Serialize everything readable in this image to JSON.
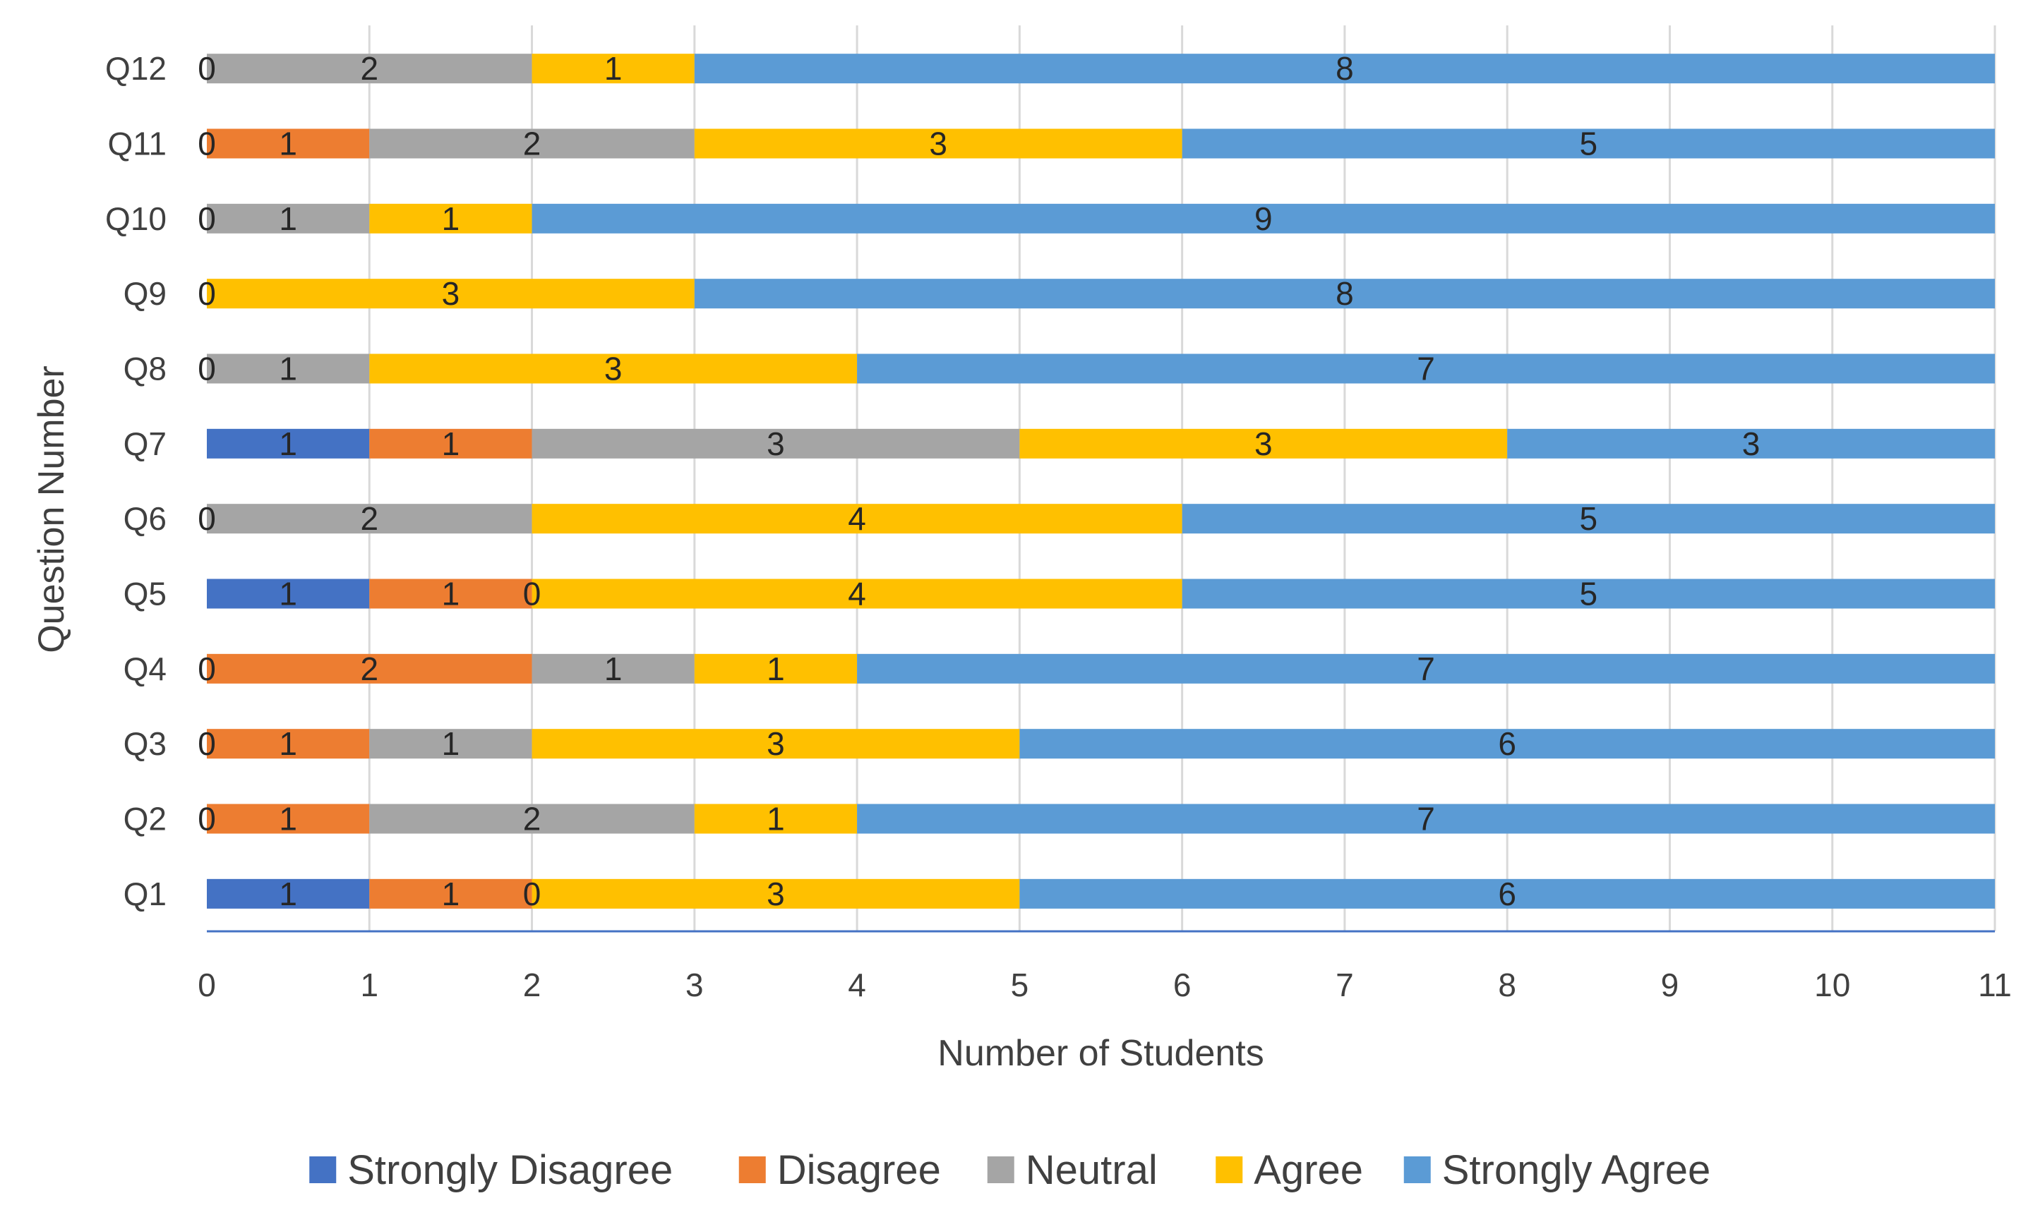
{
  "chart_data": {
    "type": "bar",
    "orientation": "horizontal",
    "stacked": true,
    "xlabel": "Number of Students",
    "ylabel": "Question Number",
    "xlim": [
      0,
      11
    ],
    "xticks": [
      0,
      1,
      2,
      3,
      4,
      5,
      6,
      7,
      8,
      9,
      10,
      11
    ],
    "grid": true,
    "legend_position": "bottom",
    "categories": [
      "Q1",
      "Q2",
      "Q3",
      "Q4",
      "Q5",
      "Q6",
      "Q7",
      "Q8",
      "Q9",
      "Q10",
      "Q11",
      "Q12"
    ],
    "series": [
      {
        "name": "Strongly Disagree",
        "color": "#4472C4",
        "values": [
          1,
          0,
          0,
          0,
          1,
          0,
          1,
          0,
          0,
          0,
          0,
          0
        ]
      },
      {
        "name": "Disagree",
        "color": "#ED7D31",
        "values": [
          1,
          1,
          1,
          2,
          1,
          0,
          1,
          0,
          0,
          0,
          1,
          0
        ]
      },
      {
        "name": "Neutral",
        "color": "#A5A5A5",
        "values": [
          0,
          2,
          1,
          1,
          0,
          2,
          3,
          1,
          0,
          1,
          2,
          2
        ]
      },
      {
        "name": "Agree",
        "color": "#FFC000",
        "values": [
          3,
          1,
          3,
          1,
          4,
          4,
          3,
          3,
          3,
          1,
          3,
          1
        ]
      },
      {
        "name": "Strongly Agree",
        "color": "#5B9BD5",
        "values": [
          6,
          7,
          6,
          7,
          5,
          5,
          3,
          7,
          8,
          9,
          5,
          8
        ]
      }
    ],
    "data_labels": [
      [
        "1",
        "1",
        "0",
        "3",
        "6"
      ],
      [
        "0",
        "1",
        "2",
        "1",
        "7"
      ],
      [
        "0",
        "1",
        "1",
        "3",
        "6"
      ],
      [
        "0",
        "2",
        "1",
        "1",
        "7"
      ],
      [
        "1",
        "1",
        "0",
        "4",
        "5"
      ],
      [
        "0",
        "2",
        "4",
        "5"
      ],
      [
        "1",
        "1",
        "3",
        "3",
        "3"
      ],
      [
        "0",
        "1",
        "3",
        "7"
      ],
      [
        "0",
        "3",
        "8"
      ],
      [
        "0",
        "1",
        "1",
        "9"
      ],
      [
        "0",
        "1",
        "2",
        "3",
        "5"
      ],
      [
        "0",
        "2",
        "1",
        "8"
      ]
    ]
  }
}
